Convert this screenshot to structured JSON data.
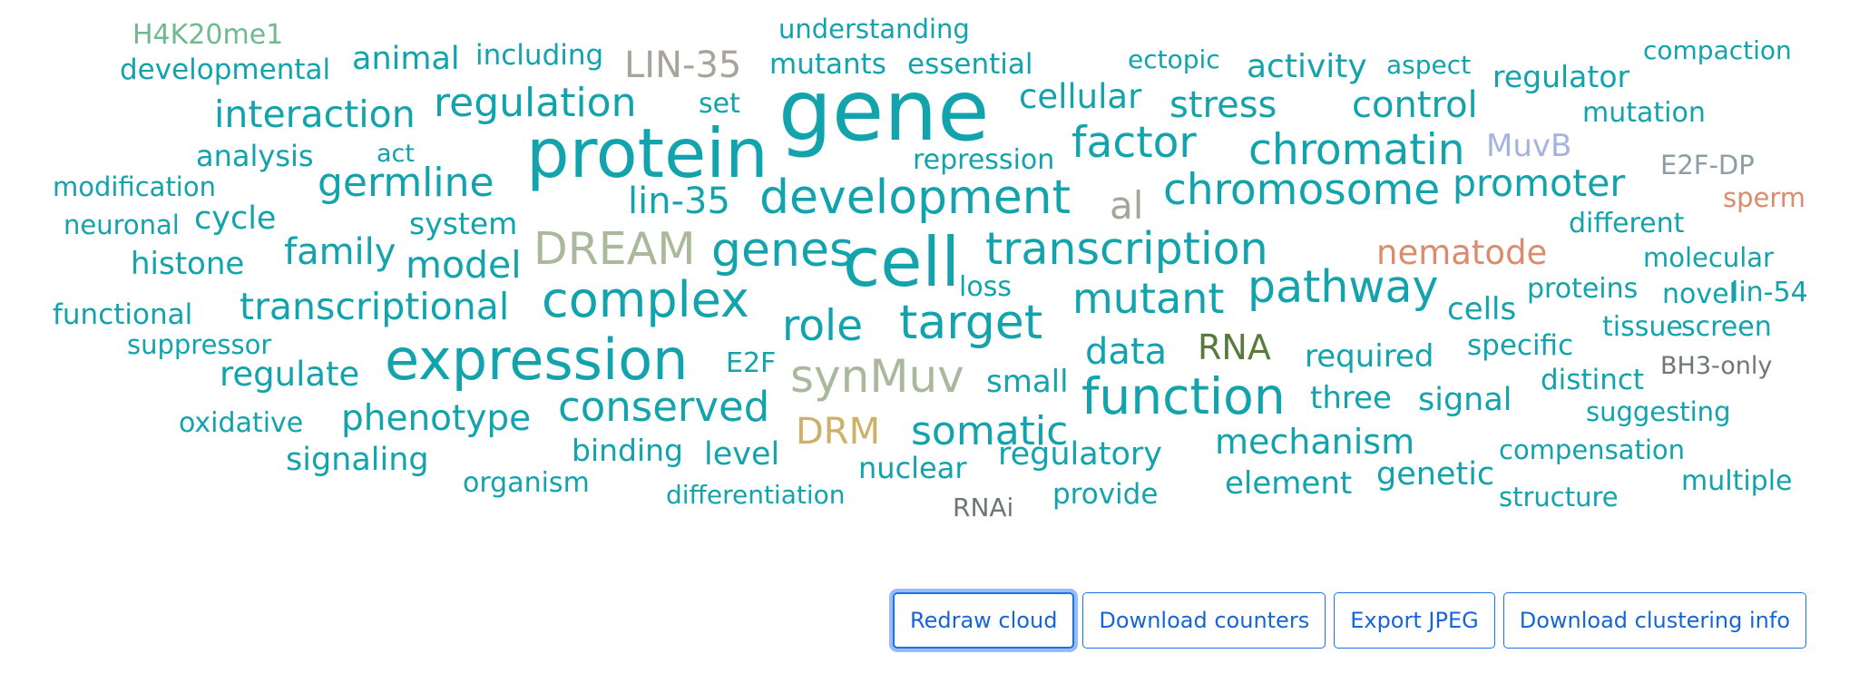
{
  "palette": {
    "teal": "#12a3ad",
    "green": "#6fba8e",
    "gray": "#a8a49a",
    "sage": "#aab89b",
    "slate": "#8c9ea3",
    "lavender": "#a6b3e0",
    "salmon": "#db8b6e",
    "olive": "#587a3c",
    "gold": "#cdb168",
    "darkgray": "#6f7676",
    "button_blue": "#1a73e8"
  },
  "cloud": {
    "words": [
      {
        "text": "H4K20me1",
        "color": "green"
      },
      {
        "text": "understanding",
        "color": "teal"
      },
      {
        "text": "compaction",
        "color": "teal"
      },
      {
        "text": "developmental",
        "color": "teal"
      },
      {
        "text": "animal",
        "color": "teal"
      },
      {
        "text": "including",
        "color": "teal"
      },
      {
        "text": "LIN-35",
        "color": "gray"
      },
      {
        "text": "mutants",
        "color": "teal"
      },
      {
        "text": "essential",
        "color": "teal"
      },
      {
        "text": "ectopic",
        "color": "teal"
      },
      {
        "text": "activity",
        "color": "teal"
      },
      {
        "text": "aspect",
        "color": "teal"
      },
      {
        "text": "regulator",
        "color": "teal"
      },
      {
        "text": "gene",
        "color": "teal"
      },
      {
        "text": "cellular",
        "color": "teal"
      },
      {
        "text": "set",
        "color": "teal"
      },
      {
        "text": "regulation",
        "color": "teal"
      },
      {
        "text": "interaction",
        "color": "teal"
      },
      {
        "text": "stress",
        "color": "teal"
      },
      {
        "text": "control",
        "color": "teal"
      },
      {
        "text": "mutation",
        "color": "teal"
      },
      {
        "text": "protein",
        "color": "teal"
      },
      {
        "text": "factor",
        "color": "teal"
      },
      {
        "text": "analysis",
        "color": "teal"
      },
      {
        "text": "act",
        "color": "teal"
      },
      {
        "text": "repression",
        "color": "teal"
      },
      {
        "text": "chromatin",
        "color": "teal"
      },
      {
        "text": "MuvB",
        "color": "lavender"
      },
      {
        "text": "E2F-DP",
        "color": "slate"
      },
      {
        "text": "modification",
        "color": "teal"
      },
      {
        "text": "germline",
        "color": "teal"
      },
      {
        "text": "development",
        "color": "teal"
      },
      {
        "text": "chromosome",
        "color": "teal"
      },
      {
        "text": "promoter",
        "color": "teal"
      },
      {
        "text": "sperm",
        "color": "salmon"
      },
      {
        "text": "lin-35",
        "color": "teal"
      },
      {
        "text": "al",
        "color": "gray"
      },
      {
        "text": "neuronal",
        "color": "teal"
      },
      {
        "text": "cycle",
        "color": "teal"
      },
      {
        "text": "system",
        "color": "teal"
      },
      {
        "text": "different",
        "color": "teal"
      },
      {
        "text": "histone",
        "color": "teal"
      },
      {
        "text": "family",
        "color": "teal"
      },
      {
        "text": "DREAM",
        "color": "sage"
      },
      {
        "text": "genes",
        "color": "teal"
      },
      {
        "text": "cell",
        "color": "teal"
      },
      {
        "text": "transcription",
        "color": "teal"
      },
      {
        "text": "nematode",
        "color": "salmon"
      },
      {
        "text": "molecular",
        "color": "teal"
      },
      {
        "text": "model",
        "color": "teal"
      },
      {
        "text": "loss",
        "color": "teal"
      },
      {
        "text": "pathway",
        "color": "teal"
      },
      {
        "text": "proteins",
        "color": "teal"
      },
      {
        "text": "novel",
        "color": "teal"
      },
      {
        "text": "lin-54",
        "color": "teal"
      },
      {
        "text": "complex",
        "color": "teal"
      },
      {
        "text": "mutant",
        "color": "teal"
      },
      {
        "text": "functional",
        "color": "teal"
      },
      {
        "text": "transcriptional",
        "color": "teal"
      },
      {
        "text": "role",
        "color": "teal"
      },
      {
        "text": "target",
        "color": "teal"
      },
      {
        "text": "cells",
        "color": "teal"
      },
      {
        "text": "tissue",
        "color": "teal"
      },
      {
        "text": "screen",
        "color": "teal"
      },
      {
        "text": "suppressor",
        "color": "teal"
      },
      {
        "text": "RNA",
        "color": "olive"
      },
      {
        "text": "specific",
        "color": "teal"
      },
      {
        "text": "expression",
        "color": "teal"
      },
      {
        "text": "data",
        "color": "teal"
      },
      {
        "text": "required",
        "color": "teal"
      },
      {
        "text": "BH3-only",
        "color": "darkgray"
      },
      {
        "text": "E2F",
        "color": "teal"
      },
      {
        "text": "regulate",
        "color": "teal"
      },
      {
        "text": "synMuv",
        "color": "sage"
      },
      {
        "text": "small",
        "color": "teal"
      },
      {
        "text": "distinct",
        "color": "teal"
      },
      {
        "text": "function",
        "color": "teal"
      },
      {
        "text": "three",
        "color": "teal"
      },
      {
        "text": "signal",
        "color": "teal"
      },
      {
        "text": "conserved",
        "color": "teal"
      },
      {
        "text": "suggesting",
        "color": "teal"
      },
      {
        "text": "oxidative",
        "color": "teal"
      },
      {
        "text": "phenotype",
        "color": "teal"
      },
      {
        "text": "somatic",
        "color": "teal"
      },
      {
        "text": "DRM",
        "color": "gold"
      },
      {
        "text": "mechanism",
        "color": "teal"
      },
      {
        "text": "compensation",
        "color": "teal"
      },
      {
        "text": "signaling",
        "color": "teal"
      },
      {
        "text": "binding",
        "color": "teal"
      },
      {
        "text": "level",
        "color": "teal"
      },
      {
        "text": "regulatory",
        "color": "teal"
      },
      {
        "text": "nuclear",
        "color": "teal"
      },
      {
        "text": "genetic",
        "color": "teal"
      },
      {
        "text": "multiple",
        "color": "teal"
      },
      {
        "text": "organism",
        "color": "teal"
      },
      {
        "text": "element",
        "color": "teal"
      },
      {
        "text": "differentiation",
        "color": "teal"
      },
      {
        "text": "provide",
        "color": "teal"
      },
      {
        "text": "structure",
        "color": "teal"
      },
      {
        "text": "RNAi",
        "color": "darkgray"
      }
    ]
  },
  "toolbar": {
    "redraw_label": "Redraw cloud",
    "download_counters_label": "Download counters",
    "export_jpeg_label": "Export JPEG",
    "download_clustering_label": "Download clustering info"
  }
}
